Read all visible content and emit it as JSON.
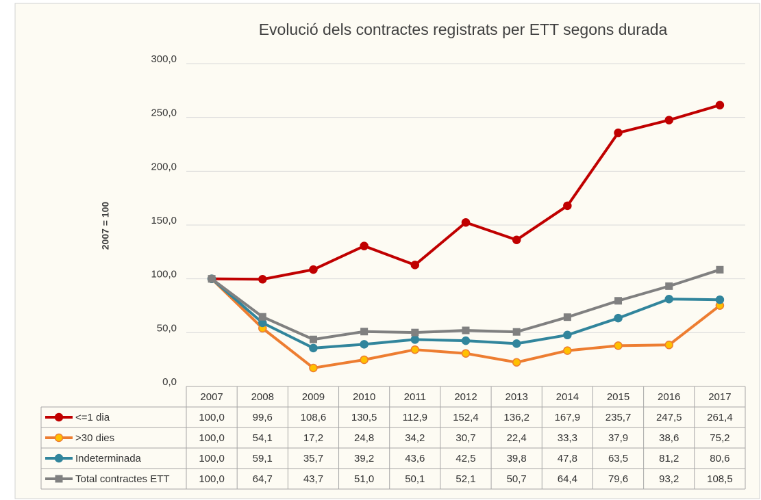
{
  "chart_data": {
    "type": "line",
    "title": "Evolució dels contractes registrats per ETT segons durada",
    "y_label": "2007 = 100",
    "categories": [
      "2007",
      "2008",
      "2009",
      "2010",
      "2011",
      "2012",
      "2013",
      "2014",
      "2015",
      "2016",
      "2017"
    ],
    "ylim": [
      0,
      300
    ],
    "yticks": [
      {
        "value": 0,
        "label": "0,0"
      },
      {
        "value": 50,
        "label": "50,0"
      },
      {
        "value": 100,
        "label": "100,0"
      },
      {
        "value": 150,
        "label": "150,0"
      },
      {
        "value": 200,
        "label": "200,0"
      },
      {
        "value": 250,
        "label": "250,0"
      },
      {
        "value": 300,
        "label": "300,0"
      }
    ],
    "grid": true,
    "series": [
      {
        "name": "<=1 dia",
        "color": "#c00000",
        "marker": "circle",
        "marker_fill": "#c00000",
        "values": [
          100.0,
          99.6,
          108.6,
          130.5,
          112.9,
          152.4,
          136.2,
          167.9,
          235.7,
          247.5,
          261.4
        ],
        "value_labels": [
          "100,0",
          "99,6",
          "108,6",
          "130,5",
          "112,9",
          "152,4",
          "136,2",
          "167,9",
          "235,7",
          "247,5",
          "261,4"
        ]
      },
      {
        "name": ">30 dies",
        "color": "#ed7d31",
        "marker": "circle",
        "marker_fill": "#ffc000",
        "values": [
          100.0,
          54.1,
          17.2,
          24.8,
          34.2,
          30.7,
          22.4,
          33.3,
          37.9,
          38.6,
          75.2
        ],
        "value_labels": [
          "100,0",
          "54,1",
          "17,2",
          "24,8",
          "34,2",
          "30,7",
          "22,4",
          "33,3",
          "37,9",
          "38,6",
          "75,2"
        ]
      },
      {
        "name": "Indeterminada",
        "color": "#31859c",
        "marker": "circle",
        "marker_fill": "#31859c",
        "values": [
          100.0,
          59.1,
          35.7,
          39.2,
          43.6,
          42.5,
          39.8,
          47.8,
          63.5,
          81.2,
          80.6
        ],
        "value_labels": [
          "100,0",
          "59,1",
          "35,7",
          "39,2",
          "43,6",
          "42,5",
          "39,8",
          "47,8",
          "63,5",
          "81,2",
          "80,6"
        ]
      },
      {
        "name": "Total contractes ETT",
        "color": "#808080",
        "marker": "square",
        "marker_fill": "#808080",
        "values": [
          100.0,
          64.7,
          43.7,
          51.0,
          50.1,
          52.1,
          50.7,
          64.4,
          79.6,
          93.2,
          108.5
        ],
        "value_labels": [
          "100,0",
          "64,7",
          "43,7",
          "51,0",
          "50,1",
          "52,1",
          "50,7",
          "64,4",
          "79,6",
          "93,2",
          "108,5"
        ]
      }
    ]
  }
}
